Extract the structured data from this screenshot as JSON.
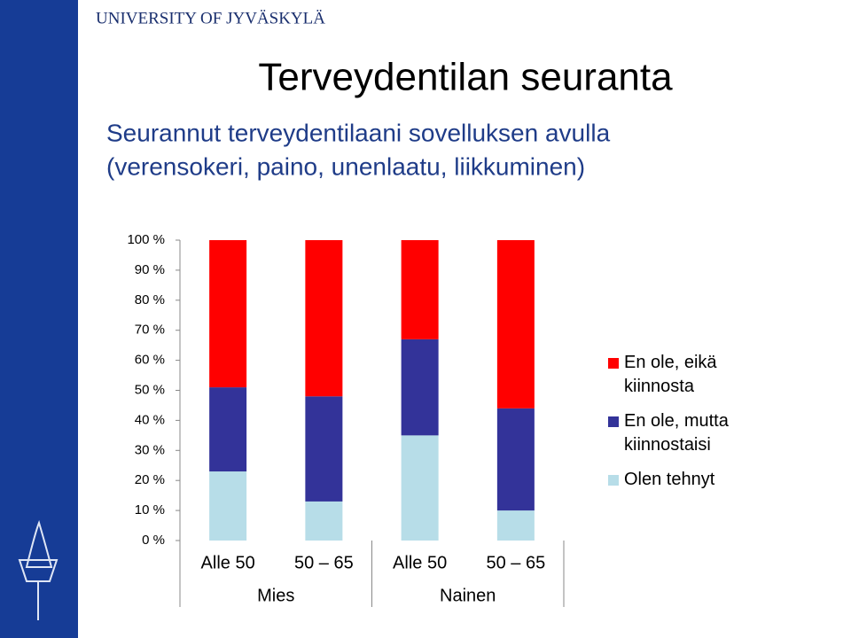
{
  "header": "UNIVERSITY OF JYVÄSKYLÄ",
  "chart_data": {
    "type": "bar",
    "stacked": true,
    "title": "Terveydentilan seuranta",
    "subtitle": [
      "Seurannut terveydentilaani sovelluksen avulla",
      "(verensokeri, paino, unenlaatu, liikkuminen)"
    ],
    "categories": [
      "Alle 50",
      "50 – 65",
      "Alle 50",
      "50 – 65"
    ],
    "category_groups": [
      "Mies",
      "Nainen"
    ],
    "series": [
      {
        "name": "Olen tehnyt",
        "color": "#b7dde8",
        "values": [
          23,
          13,
          35,
          10
        ]
      },
      {
        "name": "En ole, mutta kiinnostaisi",
        "color": "#333399",
        "values": [
          28,
          35,
          32,
          34
        ]
      },
      {
        "name": "En ole, eikä kiinnosta",
        "color": "#ff0000",
        "values": [
          49,
          52,
          33,
          56
        ]
      }
    ],
    "ylim": [
      0,
      100
    ],
    "yticks": [
      {
        "value": 0,
        "label": "0 %"
      },
      {
        "value": 10,
        "label": "10 %"
      },
      {
        "value": 20,
        "label": "20 %"
      },
      {
        "value": 30,
        "label": "30 %"
      },
      {
        "value": 40,
        "label": "40 %"
      },
      {
        "value": 50,
        "label": "50 %"
      },
      {
        "value": 60,
        "label": "60 %"
      },
      {
        "value": 70,
        "label": "70 %"
      },
      {
        "value": 80,
        "label": "80 %"
      },
      {
        "value": 90,
        "label": "90 %"
      },
      {
        "value": 100,
        "label": "100 %"
      }
    ],
    "legend": "right"
  }
}
